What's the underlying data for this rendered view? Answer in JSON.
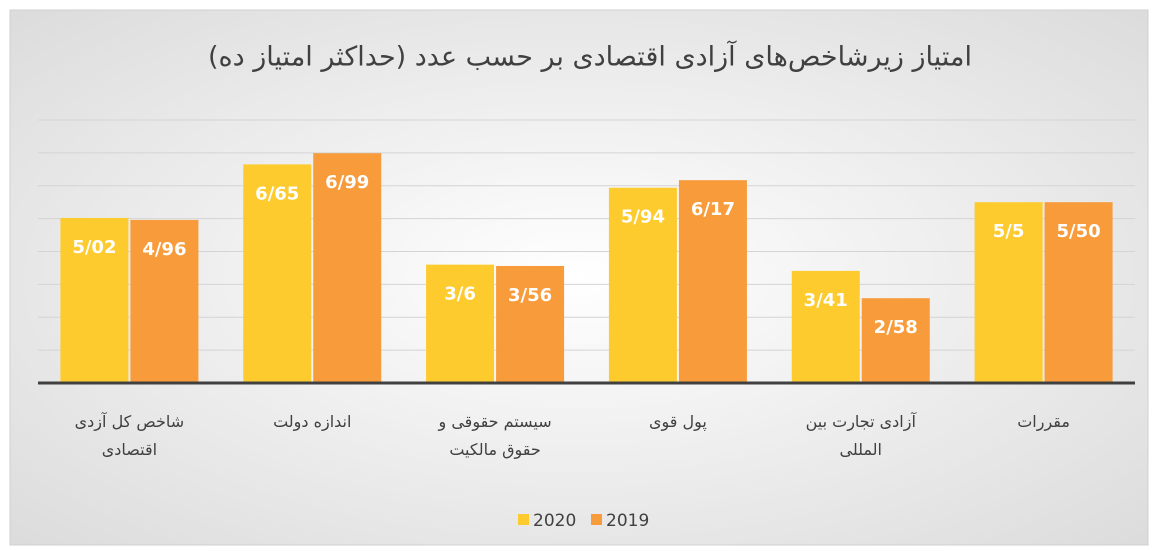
{
  "chart_data": {
    "type": "bar",
    "title": "امتیاز زیرشاخص‌های آزادی اقتصادی بر حسب عدد (حداکثر امتیاز ده)",
    "categories": [
      "شاخص کل آزدی اقتصادی",
      "اندازه دولت",
      "سیستم حقوقی و حقوق مالکیت",
      "پول قوی",
      "آزادی تجارت بین المللی",
      "مقررات"
    ],
    "series": [
      {
        "name": "2020",
        "color": "#fecb2f",
        "values": [
          5.02,
          6.65,
          3.6,
          5.94,
          3.41,
          5.5
        ],
        "value_labels": [
          "5/02",
          "6/65",
          "3/6",
          "5/94",
          "3/41",
          "5/5"
        ]
      },
      {
        "name": "2019",
        "color": "#f79b3b",
        "values": [
          4.96,
          6.99,
          3.56,
          6.17,
          2.58,
          5.5
        ],
        "value_labels": [
          "4/96",
          "6/99",
          "3/56",
          "6/17",
          "2/58",
          "5/50"
        ]
      }
    ],
    "ylim": [
      0,
      8
    ],
    "yticks": [
      0,
      1,
      2,
      3,
      4,
      5,
      6,
      7,
      8
    ],
    "grid": true,
    "legend": "bottom"
  }
}
